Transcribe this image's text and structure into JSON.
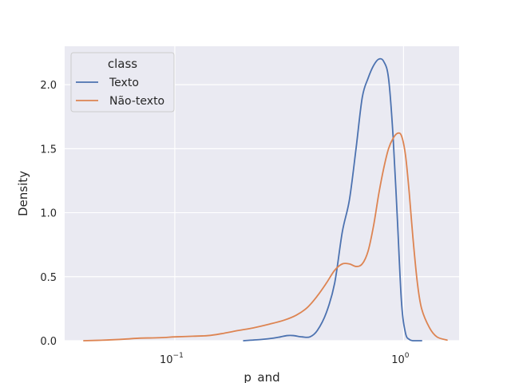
{
  "chart_data": {
    "type": "line",
    "title": "",
    "xlabel": "p_and",
    "ylabel": "Density",
    "xscale": "log",
    "xlim": [
      0.033,
      1.75
    ],
    "ylim": [
      0,
      2.3
    ],
    "yticks": [
      0.0,
      0.5,
      1.0,
      1.5,
      2.0
    ],
    "ytick_labels": [
      "0.0",
      "0.5",
      "1.0",
      "1.5",
      "2.0"
    ],
    "xticks": [
      0.1,
      1.0
    ],
    "xtick_labels": [
      {
        "base": "10",
        "exp": "−1"
      },
      {
        "base": "10",
        "exp": "0"
      }
    ],
    "grid": true,
    "legend": {
      "title": "class",
      "placement": "top-left"
    },
    "colors": {
      "Texto": "#4c72b0",
      "Não-texto": "#dd8452",
      "background": "#eaeaf2",
      "grid": "#ffffff"
    },
    "series": [
      {
        "name": "Texto",
        "color": "#4c72b0",
        "x": [
          0.2,
          0.24,
          0.27,
          0.29,
          0.31,
          0.33,
          0.36,
          0.39,
          0.42,
          0.46,
          0.5,
          0.54,
          0.58,
          0.62,
          0.66,
          0.7,
          0.74,
          0.78,
          0.82,
          0.86,
          0.9,
          0.94,
          0.98,
          1.02,
          1.06,
          1.1,
          1.15,
          1.2
        ],
        "y": [
          0.0,
          0.01,
          0.02,
          0.03,
          0.04,
          0.04,
          0.03,
          0.03,
          0.08,
          0.22,
          0.45,
          0.85,
          1.1,
          1.5,
          1.9,
          2.05,
          2.15,
          2.2,
          2.18,
          2.05,
          1.6,
          0.95,
          0.3,
          0.06,
          0.01,
          0.0,
          0.0,
          0.0
        ]
      },
      {
        "name": "Não-texto",
        "color": "#dd8452",
        "x": [
          0.04,
          0.05,
          0.06,
          0.07,
          0.08,
          0.09,
          0.1,
          0.12,
          0.14,
          0.16,
          0.19,
          0.22,
          0.26,
          0.3,
          0.34,
          0.38,
          0.42,
          0.46,
          0.5,
          0.54,
          0.58,
          0.62,
          0.66,
          0.7,
          0.74,
          0.78,
          0.82,
          0.86,
          0.9,
          0.94,
          0.98,
          1.02,
          1.06,
          1.1,
          1.15,
          1.2,
          1.3,
          1.4,
          1.55
        ],
        "y": [
          0.0,
          0.005,
          0.012,
          0.02,
          0.022,
          0.025,
          0.03,
          0.035,
          0.04,
          0.055,
          0.08,
          0.1,
          0.13,
          0.16,
          0.2,
          0.26,
          0.35,
          0.45,
          0.55,
          0.6,
          0.6,
          0.58,
          0.6,
          0.7,
          0.9,
          1.15,
          1.35,
          1.5,
          1.58,
          1.62,
          1.6,
          1.45,
          1.15,
          0.8,
          0.45,
          0.25,
          0.1,
          0.03,
          0.005
        ]
      }
    ]
  }
}
